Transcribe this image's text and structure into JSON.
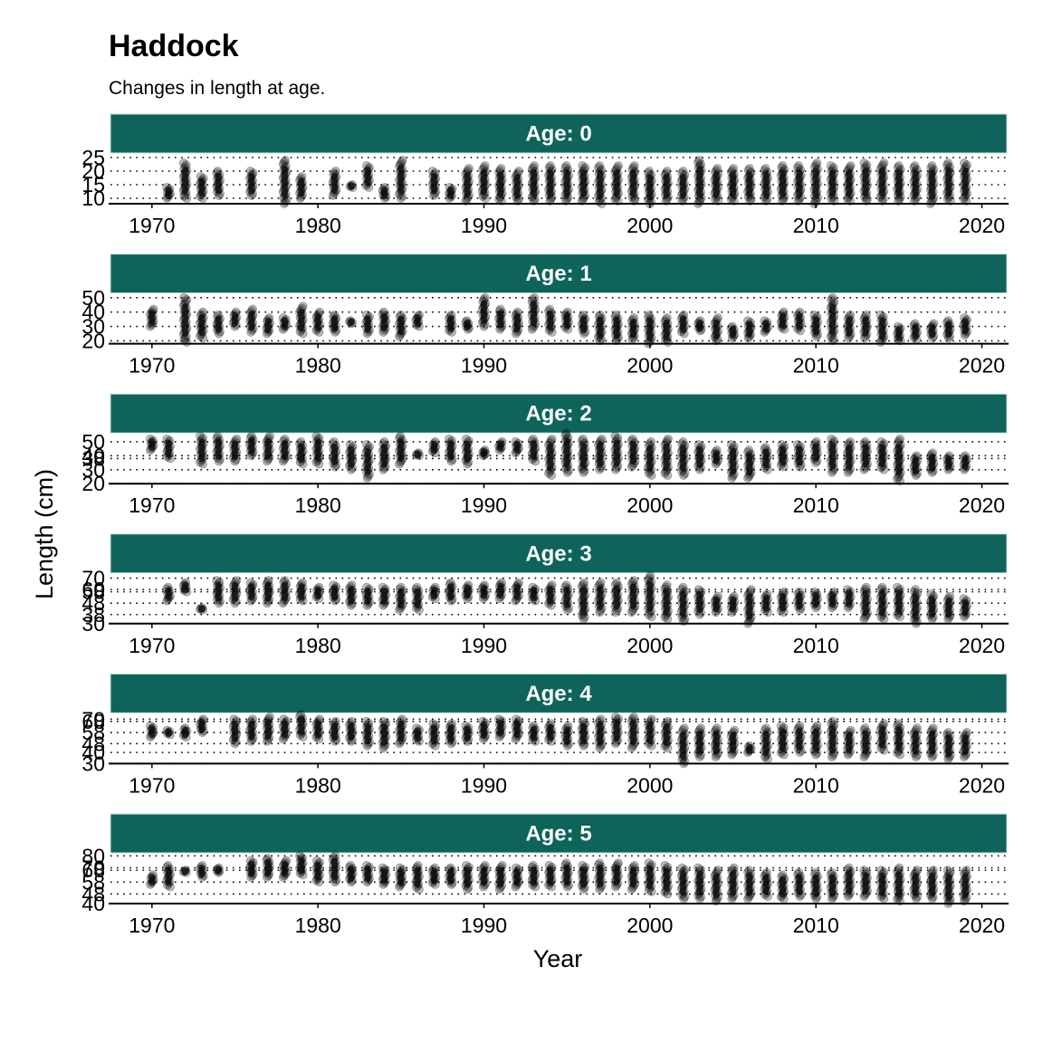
{
  "chart_data": {
    "type": "scatter",
    "title": "Haddock",
    "subtitle": "Changes in length at age.",
    "xlabel": "Year",
    "ylabel": "Length (cm)",
    "facet_prefix": "Age: ",
    "strip_color": "#0e645a",
    "strip_text_color": "#ffffff",
    "point_color": "#000000",
    "point_opacity": 0.28,
    "xlim": [
      1967.5,
      2021.5
    ],
    "xticks": [
      1970,
      1980,
      1990,
      2000,
      2010,
      2020
    ],
    "grid": "dotted",
    "panels": [
      {
        "age": "0",
        "ylim": [
          8,
          26
        ],
        "yticks": [
          10,
          15,
          20,
          25
        ],
        "years": [
          1971,
          1972,
          1973,
          1974,
          1976,
          1978,
          1979,
          1981,
          1982,
          1983,
          1984,
          1985,
          1987,
          1988,
          1989,
          1990,
          1991,
          1992,
          1993,
          1994,
          1995,
          1996,
          1997,
          1998,
          1999,
          2000,
          2001,
          2002,
          2003,
          2004,
          2005,
          2006,
          2007,
          2008,
          2009,
          2010,
          2011,
          2012,
          2013,
          2014,
          2015,
          2016,
          2017,
          2018,
          2019
        ],
        "minimums": [
          10,
          10,
          10,
          11,
          11,
          8,
          10,
          11,
          14,
          14,
          10,
          10,
          11,
          10,
          9,
          10,
          9,
          9,
          9,
          9,
          9,
          9,
          8,
          9,
          9,
          8,
          9,
          9,
          8,
          9,
          9,
          9,
          9,
          9,
          9,
          8,
          9,
          9,
          9,
          9,
          9,
          9,
          8,
          9,
          9
        ],
        "maximums": [
          14,
          23,
          18,
          20,
          20,
          24,
          18,
          20,
          15,
          22,
          14,
          24,
          20,
          14,
          21,
          22,
          21,
          20,
          22,
          22,
          22,
          22,
          22,
          22,
          22,
          20,
          20,
          20,
          24,
          21,
          21,
          21,
          21,
          22,
          22,
          23,
          22,
          22,
          23,
          23,
          22,
          22,
          22,
          23,
          23
        ]
      },
      {
        "age": "1",
        "ylim": [
          18,
          52
        ],
        "yticks": [
          20,
          30,
          40,
          50
        ],
        "years": [
          1970,
          1972,
          1973,
          1974,
          1975,
          1976,
          1977,
          1978,
          1979,
          1980,
          1981,
          1982,
          1983,
          1984,
          1985,
          1986,
          1988,
          1989,
          1990,
          1991,
          1992,
          1993,
          1994,
          1995,
          1996,
          1997,
          1998,
          1999,
          2000,
          2001,
          2002,
          2003,
          2004,
          2005,
          2006,
          2007,
          2008,
          2009,
          2010,
          2011,
          2012,
          2013,
          2014,
          2015,
          2016,
          2017,
          2018,
          2019
        ],
        "minimums": [
          30,
          19,
          22,
          25,
          30,
          26,
          25,
          28,
          25,
          26,
          26,
          32,
          25,
          26,
          23,
          30,
          26,
          28,
          30,
          28,
          25,
          28,
          26,
          28,
          25,
          20,
          20,
          21,
          18,
          19,
          25,
          27,
          20,
          22,
          22,
          26,
          28,
          27,
          23,
          20,
          22,
          22,
          19,
          20,
          21,
          22,
          22,
          24
        ],
        "maximums": [
          42,
          50,
          40,
          38,
          40,
          42,
          36,
          36,
          44,
          40,
          38,
          34,
          38,
          40,
          38,
          38,
          38,
          34,
          50,
          42,
          40,
          50,
          42,
          40,
          38,
          38,
          38,
          36,
          38,
          36,
          38,
          34,
          36,
          30,
          34,
          34,
          40,
          40,
          38,
          50,
          38,
          38,
          38,
          30,
          32,
          32,
          34,
          36
        ]
      },
      {
        "age": "2",
        "ylim": [
          20,
          55
        ],
        "yticks": [
          20,
          30,
          38,
          40,
          50
        ],
        "years": [
          1970,
          1971,
          1973,
          1974,
          1975,
          1976,
          1977,
          1978,
          1979,
          1980,
          1981,
          1982,
          1983,
          1984,
          1985,
          1986,
          1987,
          1988,
          1989,
          1990,
          1991,
          1992,
          1993,
          1994,
          1995,
          1996,
          1997,
          1998,
          1999,
          2000,
          2001,
          2002,
          2003,
          2004,
          2005,
          2006,
          2007,
          2008,
          2009,
          2010,
          2011,
          2012,
          2013,
          2014,
          2015,
          2016,
          2017,
          2018,
          2019
        ],
        "minimums": [
          44,
          38,
          34,
          36,
          36,
          40,
          36,
          36,
          34,
          34,
          32,
          30,
          24,
          30,
          34,
          40,
          42,
          36,
          34,
          40,
          44,
          42,
          36,
          26,
          28,
          28,
          30,
          30,
          32,
          26,
          26,
          26,
          30,
          34,
          24,
          24,
          30,
          32,
          32,
          35,
          28,
          28,
          30,
          30,
          22,
          26,
          28,
          30,
          30
        ],
        "maximums": [
          52,
          52,
          54,
          54,
          52,
          54,
          54,
          52,
          50,
          54,
          50,
          48,
          48,
          50,
          54,
          42,
          50,
          52,
          52,
          44,
          50,
          50,
          52,
          52,
          56,
          52,
          52,
          54,
          52,
          50,
          52,
          50,
          48,
          44,
          48,
          44,
          46,
          48,
          48,
          50,
          52,
          50,
          50,
          50,
          52,
          40,
          42,
          40,
          40
        ]
      },
      {
        "age": "3",
        "ylim": [
          30,
          73
        ],
        "yticks": [
          30,
          38,
          48,
          58,
          60,
          70
        ],
        "years": [
          1971,
          1972,
          1973,
          1974,
          1975,
          1976,
          1977,
          1978,
          1979,
          1980,
          1981,
          1982,
          1983,
          1984,
          1985,
          1986,
          1987,
          1988,
          1989,
          1990,
          1991,
          1992,
          1993,
          1994,
          1995,
          1996,
          1997,
          1998,
          1999,
          2000,
          2001,
          2002,
          2003,
          2004,
          2005,
          2006,
          2007,
          2008,
          2009,
          2010,
          2011,
          2012,
          2013,
          2014,
          2015,
          2016,
          2017,
          2018,
          2019
        ],
        "minimums": [
          50,
          58,
          42,
          48,
          48,
          50,
          48,
          48,
          50,
          52,
          50,
          46,
          46,
          46,
          42,
          42,
          52,
          50,
          52,
          52,
          52,
          50,
          50,
          46,
          42,
          34,
          40,
          40,
          40,
          36,
          34,
          32,
          38,
          40,
          40,
          30,
          40,
          40,
          42,
          44,
          44,
          44,
          34,
          34,
          36,
          30,
          34,
          34,
          36
        ],
        "maximums": [
          62,
          66,
          44,
          68,
          68,
          66,
          68,
          68,
          66,
          62,
          64,
          64,
          62,
          62,
          62,
          62,
          62,
          66,
          64,
          64,
          66,
          66,
          62,
          64,
          64,
          66,
          66,
          66,
          68,
          72,
          64,
          62,
          60,
          54,
          54,
          60,
          56,
          58,
          58,
          58,
          58,
          60,
          62,
          62,
          62,
          60,
          56,
          54,
          52
        ]
      },
      {
        "age": "4",
        "ylim": [
          30,
          74
        ],
        "yticks": [
          30,
          40,
          48,
          58,
          68,
          70
        ],
        "years": [
          1970,
          1971,
          1972,
          1973,
          1975,
          1976,
          1977,
          1978,
          1979,
          1980,
          1981,
          1982,
          1983,
          1984,
          1985,
          1986,
          1987,
          1988,
          1989,
          1990,
          1991,
          1992,
          1993,
          1994,
          1995,
          1996,
          1997,
          1998,
          1999,
          2000,
          2001,
          2002,
          2003,
          2004,
          2005,
          2006,
          2007,
          2008,
          2009,
          2010,
          2011,
          2012,
          2013,
          2014,
          2015,
          2016,
          2017,
          2018,
          2019
        ],
        "minimums": [
          54,
          56,
          54,
          58,
          48,
          50,
          50,
          52,
          54,
          52,
          50,
          50,
          46,
          44,
          48,
          50,
          46,
          48,
          50,
          52,
          54,
          52,
          50,
          50,
          46,
          46,
          44,
          48,
          44,
          46,
          44,
          30,
          36,
          36,
          38,
          40,
          34,
          38,
          40,
          38,
          36,
          38,
          36,
          42,
          38,
          36,
          36,
          34,
          36
        ],
        "maximums": [
          64,
          60,
          62,
          70,
          70,
          70,
          72,
          70,
          74,
          70,
          68,
          68,
          68,
          68,
          70,
          62,
          66,
          66,
          64,
          68,
          70,
          70,
          64,
          66,
          64,
          68,
          70,
          72,
          72,
          70,
          68,
          62,
          62,
          62,
          60,
          46,
          62,
          64,
          64,
          64,
          68,
          60,
          62,
          66,
          66,
          62,
          62,
          58,
          58
        ]
      },
      {
        "age": "5",
        "ylim": [
          40,
          81
        ],
        "yticks": [
          40,
          48,
          58,
          68,
          70,
          80
        ],
        "years": [
          1970,
          1971,
          1972,
          1973,
          1974,
          1976,
          1977,
          1978,
          1979,
          1980,
          1981,
          1982,
          1983,
          1984,
          1985,
          1986,
          1987,
          1988,
          1989,
          1990,
          1991,
          1992,
          1993,
          1994,
          1995,
          1996,
          1997,
          1998,
          1999,
          2000,
          2001,
          2002,
          2003,
          2004,
          2005,
          2006,
          2007,
          2008,
          2009,
          2010,
          2011,
          2012,
          2013,
          2014,
          2015,
          2016,
          2017,
          2018,
          2019
        ],
        "minimums": [
          56,
          54,
          66,
          62,
          66,
          62,
          62,
          62,
          64,
          58,
          58,
          58,
          58,
          56,
          54,
          52,
          56,
          56,
          52,
          54,
          52,
          54,
          54,
          54,
          54,
          52,
          52,
          54,
          52,
          50,
          48,
          44,
          44,
          42,
          44,
          44,
          46,
          44,
          46,
          44,
          44,
          46,
          46,
          44,
          42,
          44,
          44,
          40,
          42
        ],
        "maximums": [
          64,
          72,
          68,
          72,
          70,
          76,
          78,
          76,
          80,
          76,
          80,
          72,
          72,
          70,
          70,
          72,
          70,
          70,
          72,
          72,
          72,
          70,
          72,
          72,
          74,
          72,
          74,
          74,
          72,
          74,
          72,
          70,
          70,
          68,
          70,
          68,
          66,
          64,
          66,
          66,
          66,
          70,
          68,
          68,
          70,
          68,
          68,
          68,
          68
        ]
      }
    ]
  }
}
